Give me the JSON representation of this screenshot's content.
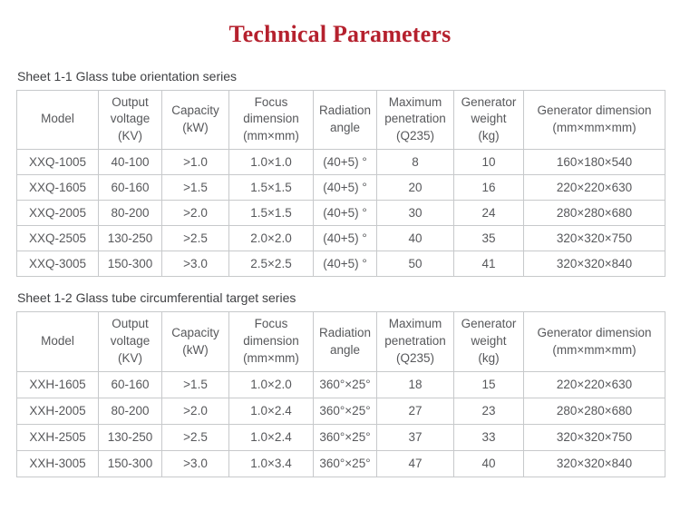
{
  "title": "Technical Parameters",
  "colors": {
    "title_accent": "#b5212e",
    "table_border": "#c7c9cb",
    "table_text": "#57585b",
    "caption_text": "#3f4043"
  },
  "tables": [
    {
      "caption": "Sheet 1-1 Glass tube orientation series",
      "headers": [
        "Model",
        "Output\nvoltage\n(KV)",
        "Capacity\n(kW)",
        "Focus\ndimension\n(mm×mm)",
        "Radiation\nangle",
        "Maximum\npenetration\n(Q235)",
        "Generator\nweight\n(kg)",
        "Generator dimension\n(mm×mm×mm)"
      ],
      "rows": [
        [
          "XXQ-1005",
          "40-100",
          ">1.0",
          "1.0×1.0",
          "(40+5) °",
          "8",
          "10",
          "160×180×540"
        ],
        [
          "XXQ-1605",
          "60-160",
          ">1.5",
          "1.5×1.5",
          "(40+5) °",
          "20",
          "16",
          "220×220×630"
        ],
        [
          "XXQ-2005",
          "80-200",
          ">2.0",
          "1.5×1.5",
          "(40+5) °",
          "30",
          "24",
          "280×280×680"
        ],
        [
          "XXQ-2505",
          "130-250",
          ">2.5",
          "2.0×2.0",
          "(40+5) °",
          "40",
          "35",
          "320×320×750"
        ],
        [
          "XXQ-3005",
          "150-300",
          ">3.0",
          "2.5×2.5",
          "(40+5) °",
          "50",
          "41",
          "320×320×840"
        ]
      ]
    },
    {
      "caption": "Sheet 1-2 Glass tube circumferential target series",
      "headers": [
        "Model",
        "Output\nvoltage\n(KV)",
        "Capacity\n(kW)",
        "Focus\ndimension\n(mm×mm)",
        "Radiation\nangle",
        "Maximum\npenetration\n(Q235)",
        "Generator\nweight\n(kg)",
        "Generator dimension\n(mm×mm×mm)"
      ],
      "rows": [
        [
          "XXH-1605",
          "60-160",
          ">1.5",
          "1.0×2.0",
          "360°×25°",
          "18",
          "15",
          "220×220×630"
        ],
        [
          "XXH-2005",
          "80-200",
          ">2.0",
          "1.0×2.4",
          "360°×25°",
          "27",
          "23",
          "280×280×680"
        ],
        [
          "XXH-2505",
          "130-250",
          ">2.5",
          "1.0×2.4",
          "360°×25°",
          "37",
          "33",
          "320×320×750"
        ],
        [
          "XXH-3005",
          "150-300",
          ">3.0",
          "1.0×3.4",
          "360°×25°",
          "47",
          "40",
          "320×320×840"
        ]
      ]
    }
  ]
}
